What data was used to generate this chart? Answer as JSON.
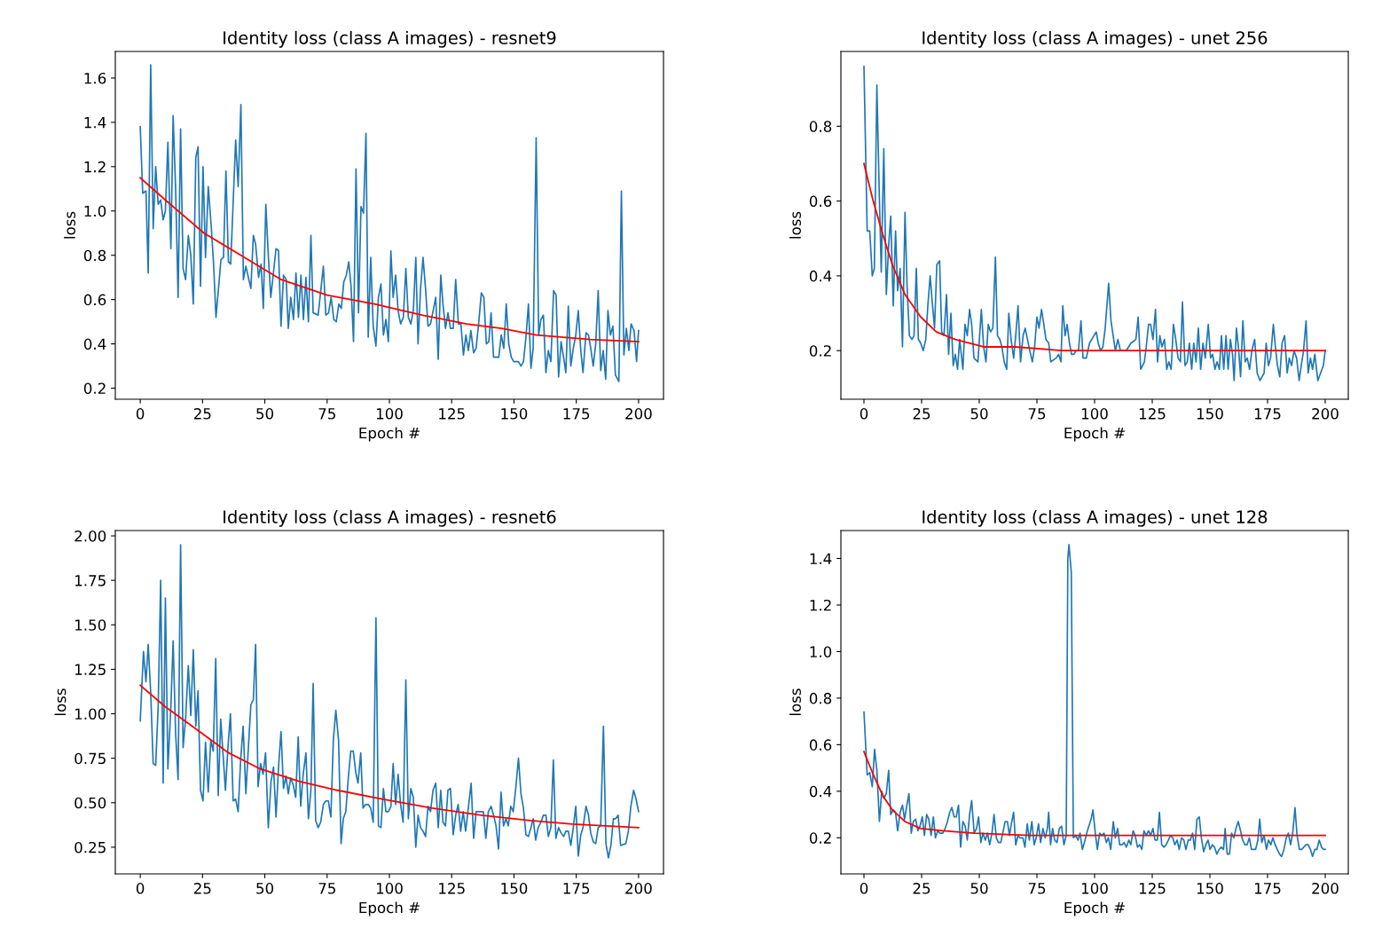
{
  "chart_data": [
    {
      "type": "line",
      "title": "Identity loss (class A images) - resnet9",
      "xlabel": "Epoch #",
      "ylabel": "loss",
      "xlim": [
        -10,
        210
      ],
      "ylim": [
        0.15,
        1.72
      ],
      "xticks": [
        0,
        25,
        50,
        75,
        100,
        125,
        150,
        175,
        200
      ],
      "yticks": [
        0.2,
        0.4,
        0.6,
        0.8,
        {
          "value": 1.0,
          "label": "1.0"
        },
        1.2,
        1.4,
        1.6
      ],
      "grid": false,
      "series": [
        {
          "color": "#1f77b4",
          "x": [
            0,
            1,
            2.3,
            3.2,
            4.2,
            5.2,
            6.2,
            7.2,
            8.2,
            9.2,
            10.1,
            11.1,
            12.3,
            13.2,
            14.2,
            15.2,
            16.2,
            17.2,
            18.2,
            19.3,
            20.3,
            21.3,
            22.3,
            23.2,
            24.2,
            25.2,
            26.2,
            27.3,
            28.5,
            29.4,
            30.4,
            32.4,
            33.4,
            34.4,
            35.4,
            36.3,
            38.3,
            39.3,
            40.4,
            41.4,
            42.4,
            44.4,
            45.4,
            46.3,
            47.5,
            48.5,
            49.4,
            50.4,
            51.4,
            52.4,
            54.5,
            55.5,
            56.5,
            57.5,
            58.6,
            59.4,
            60.4,
            61.5,
            62.5,
            63.5,
            64.5,
            65.5,
            66.5,
            67.5,
            68.5,
            69.4,
            71.4,
            73.5,
            74.5,
            75.6,
            76.6,
            77.7,
            78.7,
            79.7,
            80.7,
            81.7,
            82.7,
            83.7,
            84.6,
            85.6,
            86.6,
            87.6,
            88.6,
            89.6,
            90.6,
            91.5,
            92.5,
            93.5,
            94.6,
            95.6,
            96.6,
            97.6,
            98.6,
            99.6,
            100.6,
            101.5,
            102.5,
            103.5,
            104.5,
            105.6,
            106.6,
            107.6,
            108.6,
            109.6,
            110.6,
            111.5,
            112.5,
            113.5,
            114.5,
            115.5,
            116.5,
            118.6,
            119.6,
            120.6,
            121.5,
            122.5,
            123.5,
            124.5,
            125.6,
            126.6,
            127.7,
            128.7,
            129.7,
            130.7,
            131.7,
            132.7,
            133.8,
            134.8,
            135.8,
            136.9,
            137.9,
            138.9,
            139.9,
            140.8,
            141.8,
            143.9,
            144.9,
            145.9,
            146.9,
            147.9,
            148.9,
            149.9,
            151.8,
            152.8,
            153.8,
            154.8,
            155.8,
            156.8,
            157.7,
            158.9,
            159.9,
            160.8,
            161.8,
            162.8,
            163.8,
            164.8,
            165.9,
            166.9,
            167.9,
            168.9,
            169.9,
            170.8,
            171.8,
            172.8,
            173.8,
            174.8,
            175.8,
            176.8,
            177.7,
            178.9,
            179.9,
            180.8,
            181.8,
            182.8,
            183.8,
            184.8,
            185.8,
            186.8,
            187.7,
            188.7,
            189.7,
            190.7,
            192.1,
            193.1,
            194.1,
            195.1,
            196.1,
            197.0,
            198.2,
            199.2,
            200
          ],
          "values": [
            1.38,
            1.08,
            1.09,
            0.72,
            1.66,
            0.92,
            1.2,
            1.03,
            1.05,
            0.96,
            1.0,
            1.31,
            0.83,
            1.43,
            1.1,
            0.61,
            1.37,
            0.74,
            0.69,
            0.89,
            0.8,
            0.58,
            1.24,
            1.29,
            0.66,
            1.2,
            0.79,
            1.11,
            0.93,
            0.77,
            0.52,
            0.78,
            0.79,
            1.18,
            0.77,
            0.76,
            1.32,
            1.11,
            1.48,
            0.69,
            0.75,
            0.65,
            0.89,
            0.85,
            0.7,
            0.76,
            0.56,
            1.03,
            0.8,
            0.61,
            0.83,
            0.82,
            0.48,
            0.71,
            0.69,
            0.47,
            0.61,
            0.51,
            0.72,
            0.52,
            0.71,
            0.51,
            0.7,
            0.5,
            0.89,
            0.54,
            0.53,
            0.75,
            0.53,
            0.54,
            0.61,
            0.51,
            0.5,
            0.58,
            0.56,
            0.68,
            0.71,
            0.77,
            0.66,
            0.41,
            1.19,
            0.54,
            1.02,
            0.99,
            1.35,
            0.43,
            0.79,
            0.48,
            0.39,
            0.61,
            0.67,
            0.44,
            0.51,
            0.41,
            0.82,
            0.61,
            0.71,
            0.55,
            0.49,
            0.52,
            0.74,
            0.52,
            0.49,
            0.55,
            0.79,
            0.4,
            0.65,
            0.79,
            0.65,
            0.48,
            0.49,
            0.61,
            0.33,
            0.71,
            0.58,
            0.47,
            0.54,
            0.47,
            0.47,
            0.69,
            0.49,
            0.49,
            0.35,
            0.44,
            0.37,
            0.46,
            0.36,
            0.38,
            0.49,
            0.63,
            0.61,
            0.4,
            0.41,
            0.54,
            0.34,
            0.34,
            0.44,
            0.38,
            0.58,
            0.4,
            0.34,
            0.32,
            0.32,
            0.3,
            0.32,
            0.43,
            0.58,
            0.29,
            0.38,
            1.33,
            0.44,
            0.51,
            0.53,
            0.27,
            0.37,
            0.32,
            0.64,
            0.62,
            0.25,
            0.41,
            0.34,
            0.27,
            0.57,
            0.3,
            0.38,
            0.44,
            0.55,
            0.37,
            0.27,
            0.45,
            0.44,
            0.38,
            0.3,
            0.4,
            0.64,
            0.28,
            0.37,
            0.24,
            0.55,
            0.44,
            0.48,
            0.26,
            0.23,
            1.09,
            0.35,
            0.47,
            0.37,
            0.49,
            0.46,
            0.32,
            0.46
          ]
        },
        {
          "color": "#ff0000",
          "x": [
            0,
            10,
            25.6,
            40.4,
            56.6,
            75,
            94,
            113,
            131,
            145,
            159,
            180.6,
            200
          ],
          "values": [
            1.15,
            1.05,
            0.9,
            0.8,
            0.69,
            0.62,
            0.58,
            0.53,
            0.49,
            0.47,
            0.44,
            0.42,
            0.41
          ]
        }
      ]
    },
    {
      "type": "line",
      "title": "Identity loss (class A images) - unet 256",
      "xlabel": "Epoch #",
      "ylabel": "loss",
      "xlim": [
        -10,
        210
      ],
      "ylim": [
        0.07,
        1.0
      ],
      "xticks": [
        0,
        25,
        50,
        75,
        100,
        125,
        150,
        175,
        200
      ],
      "yticks": [
        0.2,
        0.4,
        0.6,
        0.8
      ],
      "grid": false,
      "series": [
        {
          "color": "#1f77b4",
          "x": [
            0,
            1.4,
            2.5,
            3.6,
            4.5,
            5.6,
            6.6,
            7.5,
            8.6,
            9.7,
            10.7,
            11.6,
            12.7,
            13.7,
            14.6,
            15.7,
            16.7,
            17.8,
            18.7,
            19.7,
            20.8,
            21.7,
            22.7,
            23.6,
            24.6,
            25.7,
            26.8,
            27.7,
            28.7,
            29.6,
            30.6,
            31.6,
            32.8,
            33.7,
            34.7,
            35.8,
            36.7,
            37.7,
            38.7,
            39.6,
            40.6,
            41.5,
            42.9,
            43.8,
            44.8,
            45.8,
            46.7,
            47.7,
            49.4,
            50.9,
            51.9,
            52.9,
            53.9,
            54.9,
            55.9,
            57.0,
            57.9,
            58.9,
            59.8,
            60.8,
            61.9,
            62.8,
            63.8,
            64.9,
            65.8,
            66.8,
            67.9,
            69.0,
            69.9,
            70.9,
            71.9,
            73.0,
            74.0,
            75.0,
            75.9,
            77.0,
            78.0,
            78.9,
            80.1,
            81.0,
            83.3,
            84.4,
            85.4,
            86.2,
            87.2,
            88.1,
            89.1,
            90.0,
            91.0,
            92.0,
            93.0,
            94.1,
            95.0,
            96.4,
            97.8,
            98.8,
            99.7,
            100.7,
            101.6,
            102.6,
            103.6,
            104.6,
            106.1,
            107.1,
            109.0,
            110.1,
            111.2,
            113.7,
            115.8,
            117.9,
            118.9,
            120.0,
            121.6,
            122.4,
            123.4,
            124.3,
            125.3,
            126.4,
            127.3,
            128.3,
            129.2,
            130.3,
            131.3,
            132.2,
            133.2,
            134.2,
            135.2,
            136.2,
            137.2,
            138.1,
            139.2,
            140.2,
            141.1,
            142.1,
            143.0,
            144.0,
            145.0,
            146.0,
            147.0,
            148.0,
            149.3,
            150.3,
            151.2,
            152.2,
            153.1,
            154.1,
            155.0,
            156.0,
            157.0,
            157.9,
            158.9,
            159.8,
            160.5,
            161.5,
            162.5,
            163.3,
            164.3,
            165.3,
            166.2,
            167.2,
            168.2,
            169.4,
            170.5,
            171.7,
            173.5,
            174.4,
            175.4,
            176.3,
            177.5,
            178.4,
            179.3,
            180.3,
            181.3,
            182.4,
            183.5,
            184.4,
            185.4,
            186.5,
            187.6,
            188.7,
            189.6,
            190.6,
            191.7,
            192.6,
            193.6,
            194.5,
            195.5,
            196.8,
            198.0,
            199.2,
            200
          ],
          "values": [
            0.96,
            0.52,
            0.52,
            0.4,
            0.42,
            0.91,
            0.63,
            0.41,
            0.74,
            0.35,
            0.48,
            0.56,
            0.32,
            0.52,
            0.36,
            0.42,
            0.21,
            0.57,
            0.37,
            0.24,
            0.23,
            0.24,
            0.42,
            0.23,
            0.22,
            0.2,
            0.23,
            0.32,
            0.4,
            0.33,
            0.26,
            0.43,
            0.44,
            0.25,
            0.24,
            0.35,
            0.19,
            0.3,
            0.16,
            0.19,
            0.15,
            0.23,
            0.15,
            0.27,
            0.24,
            0.31,
            0.27,
            0.18,
            0.17,
            0.31,
            0.21,
            0.17,
            0.27,
            0.25,
            0.26,
            0.45,
            0.24,
            0.23,
            0.21,
            0.17,
            0.15,
            0.3,
            0.23,
            0.18,
            0.24,
            0.32,
            0.17,
            0.24,
            0.26,
            0.23,
            0.2,
            0.17,
            0.21,
            0.29,
            0.26,
            0.31,
            0.27,
            0.23,
            0.22,
            0.17,
            0.18,
            0.19,
            0.17,
            0.32,
            0.24,
            0.27,
            0.22,
            0.19,
            0.19,
            0.2,
            0.2,
            0.28,
            0.18,
            0.18,
            0.22,
            0.23,
            0.24,
            0.25,
            0.22,
            0.2,
            0.21,
            0.26,
            0.38,
            0.28,
            0.2,
            0.23,
            0.2,
            0.2,
            0.22,
            0.23,
            0.29,
            0.15,
            0.17,
            0.21,
            0.27,
            0.27,
            0.23,
            0.31,
            0.17,
            0.24,
            0.21,
            0.23,
            0.15,
            0.17,
            0.15,
            0.27,
            0.23,
            0.18,
            0.17,
            0.33,
            0.16,
            0.17,
            0.22,
            0.15,
            0.22,
            0.17,
            0.26,
            0.15,
            0.22,
            0.18,
            0.27,
            0.18,
            0.19,
            0.15,
            0.17,
            0.15,
            0.24,
            0.15,
            0.24,
            0.15,
            0.23,
            0.19,
            0.12,
            0.26,
            0.2,
            0.13,
            0.28,
            0.17,
            0.18,
            0.15,
            0.2,
            0.23,
            0.14,
            0.12,
            0.14,
            0.22,
            0.16,
            0.18,
            0.27,
            0.21,
            0.16,
            0.13,
            0.22,
            0.24,
            0.14,
            0.18,
            0.16,
            0.2,
            0.18,
            0.12,
            0.16,
            0.2,
            0.28,
            0.14,
            0.18,
            0.15,
            0.19,
            0.12,
            0.14,
            0.16,
            0.2
          ]
        },
        {
          "color": "#ff0000",
          "x": [
            0,
            4,
            8.2,
            12.3,
            17.8,
            24.6,
            31.4,
            39.6,
            51.9,
            65.6,
            86,
            200
          ],
          "values": [
            0.7,
            0.6,
            0.51,
            0.43,
            0.35,
            0.29,
            0.25,
            0.23,
            0.21,
            0.21,
            0.2,
            0.2
          ]
        }
      ]
    },
    {
      "type": "line",
      "title": "Identity loss (class A images) - resnet6",
      "xlabel": "Epoch #",
      "ylabel": "loss",
      "xlim": [
        -10,
        210
      ],
      "ylim": [
        0.1,
        2.03
      ],
      "xticks": [
        0,
        25,
        50,
        75,
        100,
        125,
        150,
        175,
        200
      ],
      "yticks": [
        {
          "value": 0.25,
          "label": "0.25"
        },
        {
          "value": 0.5,
          "label": "0.50"
        },
        {
          "value": 0.75,
          "label": "0.75"
        },
        {
          "value": 1.0,
          "label": "1.00"
        },
        {
          "value": 1.25,
          "label": "1.25"
        },
        {
          "value": 1.5,
          "label": "1.50"
        },
        {
          "value": 1.75,
          "label": "1.75"
        },
        {
          "value": 2.0,
          "label": "2.00"
        }
      ],
      "grid": false,
      "series": [
        {
          "color": "#1f77b4",
          "x": [
            0,
            1.3,
            2.3,
            3.2,
            4.2,
            5.2,
            6.2,
            7.2,
            8.2,
            9.2,
            10.1,
            11.1,
            12.3,
            13.2,
            14.2,
            15.2,
            16.2,
            17.2,
            18.2,
            19.3,
            20.3,
            21.3,
            22.3,
            23.2,
            24.2,
            25.2,
            26.2,
            27.3,
            28.3,
            29.3,
            30.3,
            31.3,
            32.3,
            33.2,
            34.2,
            35.2,
            36.2,
            37.3,
            38.3,
            39.3,
            40.3,
            41.3,
            42.4,
            43.4,
            44.4,
            45.4,
            46.3,
            47.3,
            48.3,
            49.3,
            50.3,
            51.4,
            52.5,
            53.5,
            54.5,
            55.5,
            56.5,
            57.5,
            58.5,
            59.4,
            60.4,
            61.4,
            62.4,
            63.4,
            64.4,
            65.4,
            66.5,
            67.5,
            68.5,
            69.4,
            70.4,
            71.4,
            72.4,
            73.5,
            74.5,
            75.5,
            76.5,
            77.5,
            78.5,
            79.6,
            80.6,
            81.5,
            82.5,
            83.5,
            84.5,
            85.5,
            86.5,
            87.4,
            88.5,
            89.4,
            90.4,
            91.5,
            92.5,
            93.5,
            94.6,
            95.6,
            96.6,
            97.6,
            98.6,
            99.6,
            100.6,
            101.5,
            102.5,
            103.5,
            104.5,
            105.5,
            106.6,
            107.6,
            108.6,
            109.6,
            110.6,
            111.5,
            112.5,
            113.5,
            114.5,
            115.5,
            116.5,
            117.5,
            118.6,
            119.6,
            120.6,
            121.5,
            122.5,
            123.5,
            124.5,
            125.6,
            126.6,
            127.6,
            128.6,
            129.6,
            130.6,
            131.5,
            132.8,
            133.8,
            134.8,
            136.8,
            137.7,
            138.7,
            139.7,
            140.8,
            141.8,
            142.8,
            143.8,
            144.8,
            145.8,
            146.8,
            147.7,
            148.7,
            149.7,
            150.7,
            151.8,
            152.8,
            153.8,
            154.8,
            155.8,
            156.8,
            157.7,
            158.7,
            159.7,
            160.8,
            161.8,
            162.8,
            163.8,
            164.8,
            165.8,
            166.8,
            167.9,
            168.9,
            169.9,
            170.8,
            171.8,
            172.8,
            173.8,
            174.8,
            175.8,
            176.8,
            177.7,
            178.9,
            179.9,
            180.8,
            181.8,
            182.8,
            183.8,
            184.8,
            185.9,
            186.9,
            187.9,
            188.9,
            189.9,
            190.8,
            191.8,
            192.8,
            194.9,
            195.9,
            196.9,
            198.0,
            199.0,
            200
          ],
          "values": [
            0.96,
            1.35,
            1.18,
            1.39,
            1.12,
            0.72,
            0.71,
            1.04,
            1.75,
            0.61,
            1.65,
            0.69,
            1.04,
            1.41,
            0.89,
            0.63,
            1.95,
            0.81,
            0.97,
            1.27,
            0.99,
            1.36,
            0.93,
            1.13,
            0.57,
            0.51,
            0.84,
            0.56,
            0.85,
            0.79,
            1.31,
            0.54,
            0.97,
            0.78,
            0.57,
            0.81,
            1.0,
            0.51,
            0.52,
            0.45,
            0.74,
            0.93,
            0.55,
            0.81,
            1.05,
            1.08,
            1.39,
            0.59,
            0.72,
            0.66,
            0.78,
            0.36,
            0.62,
            0.7,
            0.42,
            0.7,
            0.9,
            0.58,
            0.65,
            0.55,
            0.64,
            0.6,
            0.53,
            0.87,
            0.48,
            0.66,
            0.78,
            0.41,
            0.57,
            1.17,
            0.4,
            0.36,
            0.39,
            0.49,
            0.51,
            0.51,
            0.42,
            0.85,
            1.02,
            0.85,
            0.27,
            0.41,
            0.45,
            0.64,
            0.79,
            0.79,
            0.67,
            0.61,
            0.78,
            0.47,
            0.49,
            0.49,
            0.47,
            0.39,
            1.54,
            0.37,
            0.36,
            0.58,
            0.45,
            0.45,
            0.48,
            0.72,
            0.49,
            0.66,
            0.49,
            0.39,
            1.19,
            0.41,
            0.58,
            0.53,
            0.25,
            0.43,
            0.36,
            0.34,
            0.31,
            0.48,
            0.45,
            0.57,
            0.61,
            0.36,
            0.57,
            0.39,
            0.37,
            0.57,
            0.58,
            0.32,
            0.43,
            0.49,
            0.34,
            0.45,
            0.34,
            0.45,
            0.61,
            0.3,
            0.45,
            0.45,
            0.45,
            0.3,
            0.45,
            0.48,
            0.43,
            0.37,
            0.24,
            0.56,
            0.37,
            0.41,
            0.37,
            0.48,
            0.45,
            0.58,
            0.75,
            0.55,
            0.47,
            0.32,
            0.31,
            0.36,
            0.41,
            0.29,
            0.36,
            0.39,
            0.43,
            0.43,
            0.31,
            0.36,
            0.74,
            0.3,
            0.36,
            0.33,
            0.31,
            0.34,
            0.34,
            0.26,
            0.36,
            0.48,
            0.2,
            0.32,
            0.36,
            0.48,
            0.43,
            0.33,
            0.28,
            0.27,
            0.36,
            0.37,
            0.93,
            0.27,
            0.19,
            0.26,
            0.41,
            0.41,
            0.43,
            0.26,
            0.27,
            0.34,
            0.48,
            0.57,
            0.52,
            0.45
          ]
        },
        {
          "color": "#ff0000",
          "x": [
            0,
            10,
            22.8,
            35.5,
            48.2,
            63.7,
            79.2,
            97.5,
            117.2,
            136.9,
            156.6,
            173.5,
            200
          ],
          "values": [
            1.16,
            1.04,
            0.91,
            0.78,
            0.69,
            0.62,
            0.57,
            0.52,
            0.47,
            0.43,
            0.4,
            0.38,
            0.36
          ]
        }
      ]
    },
    {
      "type": "line",
      "title": "Identity loss (class A images) - unet 128",
      "xlabel": "Epoch #",
      "ylabel": "loss",
      "xlim": [
        -10,
        210
      ],
      "ylim": [
        0.045,
        1.52
      ],
      "xticks": [
        0,
        25,
        50,
        75,
        100,
        125,
        150,
        175,
        200
      ],
      "yticks": [
        0.2,
        0.4,
        0.6,
        0.8,
        {
          "value": 1.0,
          "label": "1.0"
        },
        1.2,
        1.4
      ],
      "grid": false,
      "series": [
        {
          "color": "#1f77b4",
          "x": [
            0,
            1.4,
            2.5,
            3.6,
            4.6,
            5.6,
            6.7,
            7.7,
            8.6,
            9.7,
            10.7,
            11.6,
            12.7,
            13.7,
            14.6,
            15.7,
            16.7,
            17.6,
            18.6,
            19.5,
            20.5,
            21.4,
            22.4,
            23.4,
            24.3,
            25.3,
            26.2,
            27.2,
            28.1,
            29.1,
            30.1,
            31.0,
            32.0,
            32.9,
            34.2,
            35.2,
            36.2,
            37.2,
            38.1,
            39.1,
            40.0,
            41.0,
            41.9,
            42.9,
            43.9,
            44.8,
            45.8,
            46.7,
            47.8,
            48.8,
            49.7,
            50.7,
            51.6,
            52.6,
            53.6,
            54.5,
            55.5,
            56.4,
            57.4,
            58.3,
            59.3,
            60.2,
            61.2,
            62.2,
            63.1,
            63.9,
            64.9,
            65.8,
            66.8,
            67.6,
            68.9,
            69.8,
            70.8,
            71.7,
            72.8,
            73.8,
            74.7,
            75.7,
            76.6,
            77.6,
            78.6,
            79.5,
            80.1,
            80.9,
            81.8,
            82.7,
            83.7,
            84.7,
            85.7,
            86.7,
            87.7,
            88.4,
            88.9,
            89.9,
            90.8,
            91.8,
            92.8,
            93.7,
            94.7,
            95.6,
            96.6,
            97.5,
            98.5,
            99.3,
            100.3,
            101.2,
            102.2,
            103.1,
            104.1,
            105.1,
            106.0,
            107.0,
            108.1,
            109.0,
            110.0,
            110.9,
            111.9,
            112.8,
            113.8,
            114.8,
            115.7,
            116.7,
            117.6,
            118.6,
            119.5,
            120.5,
            121.4,
            122.4,
            123.4,
            124.3,
            125.3,
            126.2,
            127.2,
            128.1,
            129.1,
            130.1,
            131.0,
            132.0,
            132.9,
            133.9,
            134.8,
            135.8,
            136.7,
            137.7,
            138.7,
            139.6,
            140.6,
            141.5,
            142.5,
            143.4,
            144.4,
            145.4,
            146.3,
            147.3,
            148.2,
            149.2,
            150.1,
            151.1,
            152.0,
            153.0,
            154.0,
            154.9,
            155.9,
            156.6,
            157.5,
            158.5,
            159.4,
            160.4,
            161.3,
            162.3,
            163.3,
            164.2,
            165.2,
            166.1,
            167.1,
            168.0,
            169.8,
            170.8,
            171.6,
            172.5,
            173.5,
            174.5,
            175.4,
            176.4,
            177.3,
            178.3,
            179.2,
            180.2,
            181.1,
            182.1,
            183.1,
            184.0,
            185.0,
            185.9,
            186.9,
            187.8,
            188.8,
            189.8,
            190.7,
            191.7,
            192.6,
            193.6,
            194.5,
            195.5,
            196.4,
            197.4,
            198.4,
            199.3,
            200
          ],
          "values": [
            0.74,
            0.47,
            0.48,
            0.42,
            0.58,
            0.49,
            0.27,
            0.4,
            0.37,
            0.39,
            0.49,
            0.3,
            0.32,
            0.31,
            0.23,
            0.31,
            0.34,
            0.28,
            0.34,
            0.39,
            0.22,
            0.27,
            0.28,
            0.23,
            0.25,
            0.29,
            0.21,
            0.3,
            0.28,
            0.21,
            0.29,
            0.2,
            0.23,
            0.22,
            0.22,
            0.24,
            0.27,
            0.31,
            0.33,
            0.29,
            0.29,
            0.34,
            0.16,
            0.27,
            0.25,
            0.19,
            0.3,
            0.36,
            0.22,
            0.24,
            0.29,
            0.18,
            0.22,
            0.19,
            0.22,
            0.17,
            0.22,
            0.3,
            0.2,
            0.18,
            0.18,
            0.22,
            0.27,
            0.27,
            0.21,
            0.26,
            0.31,
            0.17,
            0.21,
            0.2,
            0.2,
            0.16,
            0.26,
            0.19,
            0.27,
            0.17,
            0.2,
            0.26,
            0.18,
            0.24,
            0.2,
            0.24,
            0.31,
            0.17,
            0.24,
            0.19,
            0.18,
            0.24,
            0.25,
            0.17,
            0.21,
            1.4,
            1.46,
            1.34,
            0.2,
            0.21,
            0.19,
            0.22,
            0.15,
            0.18,
            0.22,
            0.25,
            0.28,
            0.32,
            0.22,
            0.15,
            0.22,
            0.21,
            0.22,
            0.18,
            0.2,
            0.15,
            0.27,
            0.2,
            0.24,
            0.17,
            0.17,
            0.18,
            0.16,
            0.19,
            0.17,
            0.23,
            0.21,
            0.16,
            0.17,
            0.15,
            0.23,
            0.21,
            0.23,
            0.21,
            0.24,
            0.19,
            0.19,
            0.31,
            0.17,
            0.16,
            0.17,
            0.19,
            0.21,
            0.2,
            0.17,
            0.19,
            0.15,
            0.2,
            0.19,
            0.15,
            0.19,
            0.19,
            0.22,
            0.15,
            0.28,
            0.29,
            0.2,
            0.14,
            0.17,
            0.19,
            0.15,
            0.17,
            0.16,
            0.13,
            0.15,
            0.16,
            0.15,
            0.24,
            0.13,
            0.13,
            0.22,
            0.2,
            0.24,
            0.27,
            0.23,
            0.19,
            0.17,
            0.17,
            0.2,
            0.15,
            0.15,
            0.19,
            0.28,
            0.18,
            0.21,
            0.15,
            0.19,
            0.17,
            0.2,
            0.17,
            0.15,
            0.13,
            0.12,
            0.15,
            0.2,
            0.22,
            0.17,
            0.22,
            0.33,
            0.21,
            0.15,
            0.15,
            0.16,
            0.17,
            0.17,
            0.15,
            0.12,
            0.15,
            0.15,
            0.19,
            0.16,
            0.15,
            0.15
          ]
        },
        {
          "color": "#ff0000",
          "x": [
            0,
            4.1,
            8.2,
            12.3,
            17.8,
            24.6,
            34.2,
            47.8,
            72.4,
            200
          ],
          "values": [
            0.57,
            0.47,
            0.38,
            0.32,
            0.27,
            0.24,
            0.23,
            0.22,
            0.21,
            0.21
          ]
        }
      ]
    }
  ]
}
